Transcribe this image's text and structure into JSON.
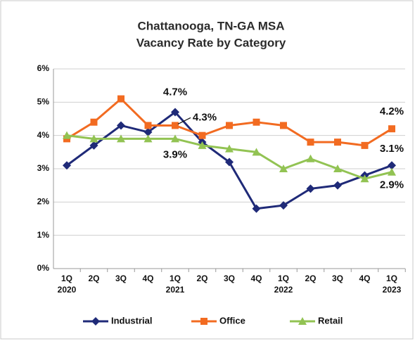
{
  "chart_data": {
    "type": "line",
    "title": [
      "Chattanooga, TN-GA MSA",
      "Vacancy Rate by Category"
    ],
    "categories": [
      "1Q 2020",
      "2Q",
      "3Q",
      "4Q",
      "1Q 2021",
      "2Q",
      "3Q",
      "4Q",
      "1Q 2022",
      "2Q",
      "3Q",
      "4Q",
      "1Q 2023"
    ],
    "series": [
      {
        "name": "Industrial",
        "color": "#1f2a78",
        "marker": "diamond",
        "values": [
          3.1,
          3.7,
          4.3,
          4.1,
          4.7,
          3.8,
          3.2,
          1.8,
          1.9,
          2.4,
          2.5,
          2.8,
          3.1
        ],
        "value_labels": [
          null,
          null,
          null,
          null,
          "4.7%",
          null,
          null,
          null,
          null,
          null,
          null,
          null,
          "3.1%"
        ]
      },
      {
        "name": "Office",
        "color": "#f26b21",
        "marker": "square",
        "values": [
          3.9,
          4.4,
          5.1,
          4.3,
          4.3,
          4.0,
          4.3,
          4.4,
          4.3,
          3.8,
          3.8,
          3.7,
          4.2
        ],
        "value_labels": [
          null,
          null,
          null,
          null,
          "4.3%",
          null,
          null,
          null,
          null,
          null,
          null,
          null,
          "4.2%"
        ]
      },
      {
        "name": "Retail",
        "color": "#92c353",
        "marker": "triangle",
        "values": [
          4.0,
          3.9,
          3.9,
          3.9,
          3.9,
          3.7,
          3.6,
          3.5,
          3.0,
          3.3,
          3.0,
          2.7,
          2.9
        ],
        "value_labels": [
          null,
          null,
          null,
          null,
          "3.9%",
          null,
          null,
          null,
          null,
          null,
          null,
          null,
          "2.9%"
        ]
      }
    ],
    "ylim": [
      0,
      6
    ],
    "yticks": [
      {
        "value": 0,
        "label": "0%"
      },
      {
        "value": 1,
        "label": "1%"
      },
      {
        "value": 2,
        "label": "2%"
      },
      {
        "value": 3,
        "label": "3%"
      },
      {
        "value": 4,
        "label": "4%"
      },
      {
        "value": 5,
        "label": "5%"
      },
      {
        "value": 6,
        "label": "6%"
      }
    ],
    "grid": true,
    "legend": "bottom"
  }
}
